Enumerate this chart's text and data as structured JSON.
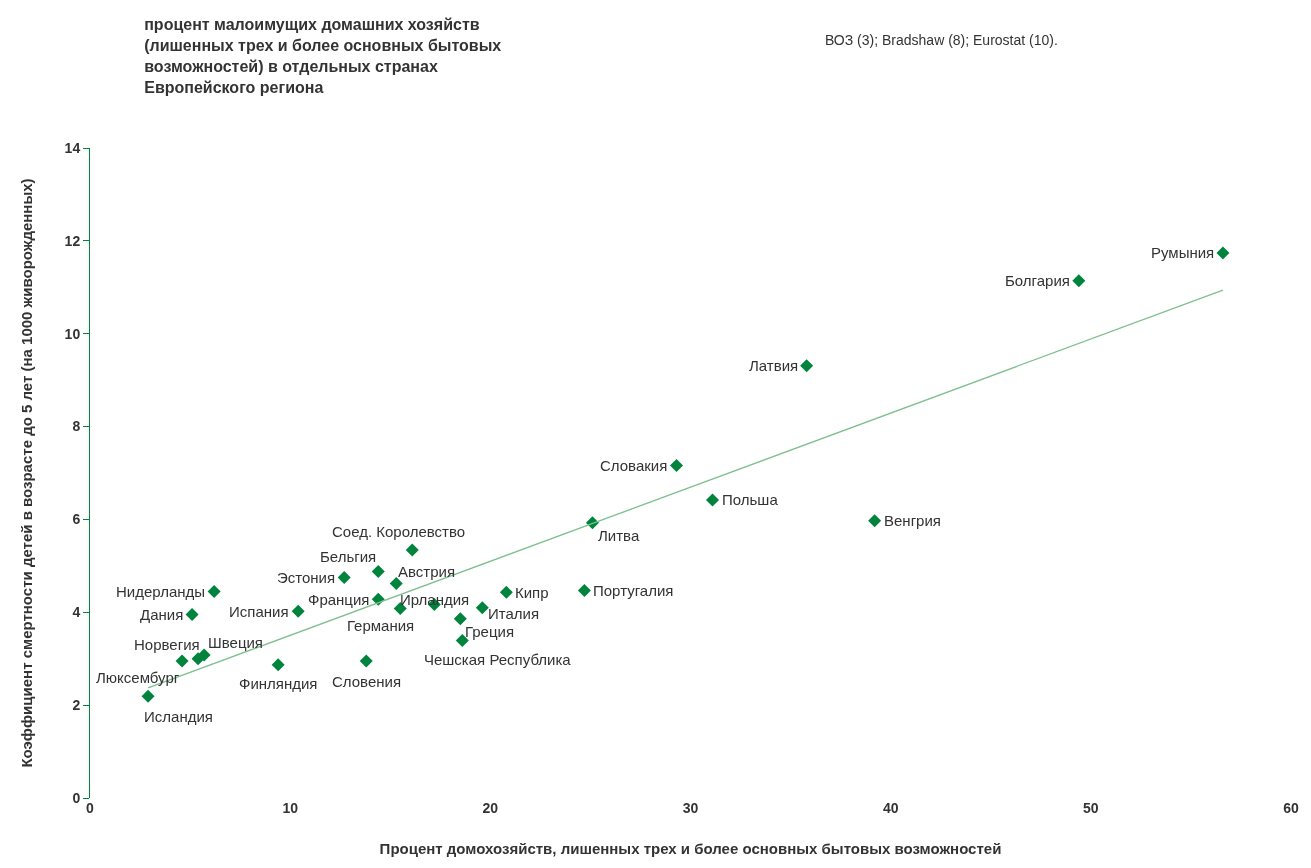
{
  "chart_data": {
    "type": "scatter",
    "title": "процент малоимущих домашних хозяйств\n(лишенных трех и более основных бытовых\nвозможностей) в отдельных странах\nЕвропейского региона",
    "xlabel": "Процент домохозяйств, лишенных трех и более основных бытовых возможностей",
    "ylabel": "Коэффициент смертности детей в возрасте до 5 лет (на 1000 живорожденных)",
    "xlim": [
      0,
      60
    ],
    "xticks": [
      0,
      10,
      20,
      30,
      40,
      50,
      60
    ],
    "ylim": [
      0,
      14
    ],
    "yticks": [
      0,
      2,
      4,
      6,
      8,
      10,
      12,
      14
    ],
    "legend": false,
    "series": [
      {
        "marker": "diamond",
        "color": "#00843d",
        "x": [
          2.9,
          4.6,
          5.4,
          5.7,
          5.1,
          6.2,
          10.4,
          9.4,
          12.7,
          14.4,
          14.4,
          15.3,
          15.5,
          16.1,
          17.2,
          13.8,
          18.5,
          18.6,
          19.6,
          20.8,
          24.7,
          25.1,
          29.3,
          31.1,
          35.8,
          39.2,
          49.4,
          56.6
        ],
        "values": [
          2.19,
          2.95,
          3.0,
          3.08,
          3.95,
          4.45,
          4.02,
          2.87,
          4.75,
          4.88,
          4.28,
          4.62,
          4.08,
          5.34,
          4.17,
          2.95,
          3.86,
          3.39,
          4.1,
          4.43,
          4.47,
          5.93,
          7.16,
          6.42,
          9.31,
          5.97,
          11.14,
          11.74
        ]
      },
      {
        "type": "line",
        "marker": "none",
        "color": "#7dbf8e",
        "x": [
          2.9,
          56.6
        ],
        "values": [
          2.37,
          10.94
        ]
      }
    ],
    "annotations": [
      {
        "text": "Исландия",
        "x": 2.9,
        "y": 2.19
      },
      {
        "text": "Люксембург",
        "x": 4.6,
        "y": 2.95
      },
      {
        "text": "Норвегия",
        "x": 5.4,
        "y": 3.0
      },
      {
        "text": "Швеция",
        "x": 5.7,
        "y": 3.08
      },
      {
        "text": "Дания",
        "x": 5.1,
        "y": 3.95
      },
      {
        "text": "Нидерланды",
        "x": 6.2,
        "y": 4.45
      },
      {
        "text": "Испания",
        "x": 10.4,
        "y": 4.02
      },
      {
        "text": "Финляндия",
        "x": 9.4,
        "y": 2.87
      },
      {
        "text": "Эстония",
        "x": 12.7,
        "y": 4.75
      },
      {
        "text": "Бельгия",
        "x": 14.4,
        "y": 4.88
      },
      {
        "text": "Франция",
        "x": 14.4,
        "y": 4.28
      },
      {
        "text": "Австрия",
        "x": 15.3,
        "y": 4.62
      },
      {
        "text": "Германия",
        "x": 15.5,
        "y": 4.08
      },
      {
        "text": "Соед. Королевство",
        "x": 16.1,
        "y": 5.34
      },
      {
        "text": "Ирландия",
        "x": 17.2,
        "y": 4.17
      },
      {
        "text": "Словения",
        "x": 13.8,
        "y": 2.95
      },
      {
        "text": "Греция",
        "x": 18.5,
        "y": 3.86
      },
      {
        "text": "Чешская Республика",
        "x": 18.6,
        "y": 3.39
      },
      {
        "text": "Италия",
        "x": 19.6,
        "y": 4.1
      },
      {
        "text": "Кипр",
        "x": 20.8,
        "y": 4.43
      },
      {
        "text": "Португалия",
        "x": 24.7,
        "y": 4.47
      },
      {
        "text": "Литва",
        "x": 25.1,
        "y": 5.93
      },
      {
        "text": "Словакия",
        "x": 29.3,
        "y": 7.16
      },
      {
        "text": "Польша",
        "x": 31.1,
        "y": 6.42
      },
      {
        "text": "Латвия",
        "x": 35.8,
        "y": 9.31
      },
      {
        "text": "Венгрия",
        "x": 39.2,
        "y": 5.97
      },
      {
        "text": "Болгария",
        "x": 49.4,
        "y": 11.14
      },
      {
        "text": "Румыния",
        "x": 56.6,
        "y": 11.74
      },
      "ВОЗ (3); Bradshaw (8); Eurostat (10)."
    ]
  }
}
